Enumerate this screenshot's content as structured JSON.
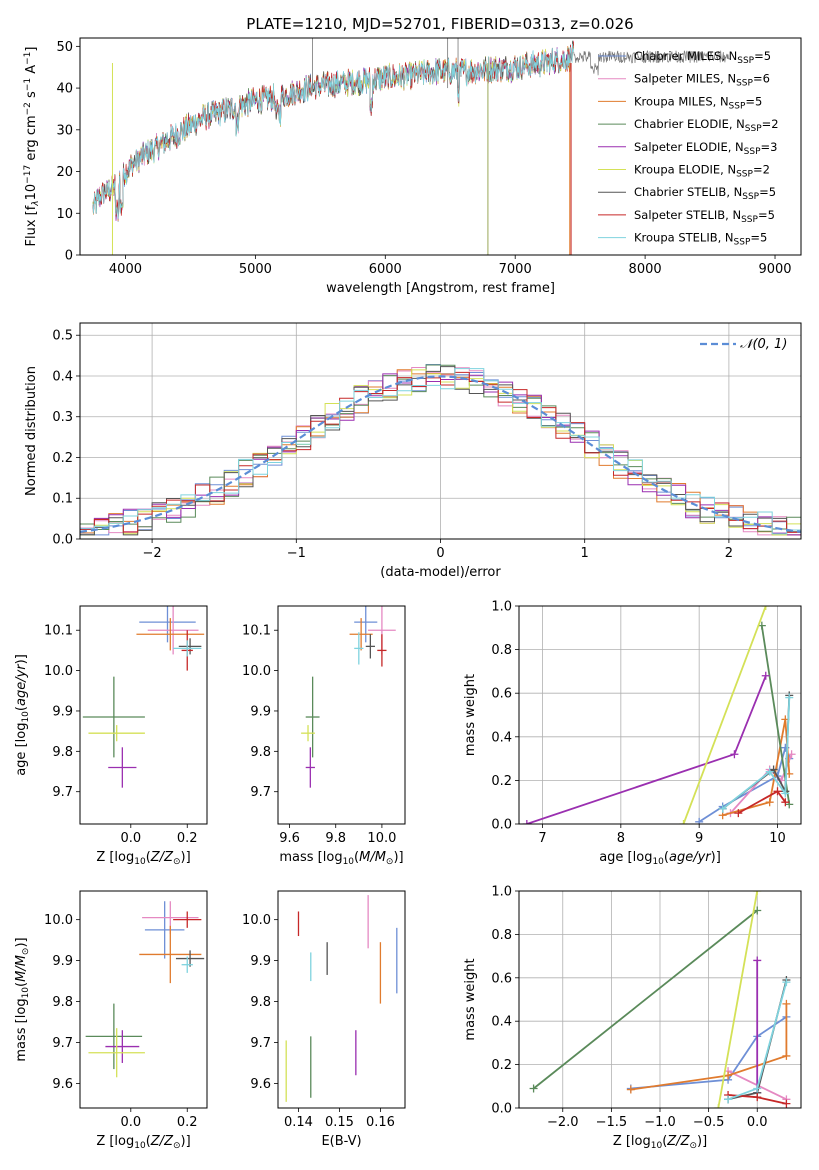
{
  "figure": {
    "title": "PLATE=1210, MJD=52701, FIBERID=0313, z=0.026"
  },
  "chart_data": [
    {
      "id": "spectrum",
      "type": "line",
      "xlabel": "wavelength [Angstrom, rest frame]",
      "ylabel": "Flux [f_λ10^{-17} erg cm^{-2} s^{-1} A^{-1}]",
      "ylabel_parts": [
        "Flux [f",
        "λ",
        "10",
        "−17",
        " erg cm",
        "−2",
        " s",
        "−1",
        " A",
        "−1",
        "]"
      ],
      "xlim": [
        3650,
        9200
      ],
      "ylim": [
        0,
        52
      ],
      "xticks": [
        4000,
        5000,
        6000,
        7000,
        8000,
        9000
      ],
      "yticks": [
        0,
        10,
        20,
        30,
        40,
        50
      ],
      "continuum": {
        "x": [
          3750,
          3800,
          3900,
          4000,
          4100,
          4200,
          4300,
          4400,
          4500,
          4600,
          4800,
          5000,
          5200,
          5400,
          5600,
          5800,
          6000,
          6200,
          6400,
          6600,
          6800,
          7000,
          7200,
          7400,
          7450
        ],
        "y": [
          11,
          14,
          16,
          20,
          23,
          25,
          27,
          29,
          31,
          33,
          35,
          37,
          38,
          40,
          41,
          41.5,
          42.5,
          43,
          44,
          44,
          44.5,
          45,
          46,
          47,
          48
        ]
      },
      "legend": [
        {
          "name": "Chabrier MILES, N_SSP=5",
          "base": "Chabrier MILES, N",
          "sub": "SSP",
          "tail": "=5",
          "color": "#6e8fd6"
        },
        {
          "name": "Salpeter MILES, N_SSP=6",
          "base": "Salpeter MILES, N",
          "sub": "SSP",
          "tail": "=6",
          "color": "#e589c2"
        },
        {
          "name": "Kroupa MILES, N_SSP=5",
          "base": "Kroupa MILES, N",
          "sub": "SSP",
          "tail": "=5",
          "color": "#e07b2e"
        },
        {
          "name": "Chabrier ELODIE, N_SSP=2",
          "base": "Chabrier ELODIE, N",
          "sub": "SSP",
          "tail": "=2",
          "color": "#5a8a5a"
        },
        {
          "name": "Salpeter ELODIE, N_SSP=3",
          "base": "Salpeter ELODIE, N",
          "sub": "SSP",
          "tail": "=3",
          "color": "#9a2fb0"
        },
        {
          "name": "Kroupa ELODIE, N_SSP=2",
          "base": "Kroupa ELODIE, N",
          "sub": "SSP",
          "tail": "=2",
          "color": "#d4e157"
        },
        {
          "name": "Chabrier STELIB, N_SSP=5",
          "base": "Chabrier STELIB, N",
          "sub": "SSP",
          "tail": "=5",
          "color": "#555555"
        },
        {
          "name": "Salpeter STELIB, N_SSP=5",
          "base": "Salpeter STELIB, N",
          "sub": "SSP",
          "tail": "=5",
          "color": "#c62828"
        },
        {
          "name": "Kroupa STELIB, N_SSP=5",
          "base": "Kroupa STELIB, N",
          "sub": "SSP",
          "tail": "=5",
          "color": "#7fd3de"
        }
      ]
    },
    {
      "id": "residuals",
      "type": "histogram",
      "xlabel": "(data-model)/error",
      "ylabel": "Normed distribution",
      "xlim": [
        -2.5,
        2.5
      ],
      "ylim": [
        0,
        0.53
      ],
      "xticks": [
        -2,
        -1,
        0,
        1,
        2
      ],
      "xtick_labels": [
        "−2",
        "−1",
        "0",
        "1",
        "2"
      ],
      "yticks": [
        0.0,
        0.1,
        0.2,
        0.3,
        0.4,
        0.5
      ],
      "ytick_labels": [
        "0.0",
        "0.1",
        "0.2",
        "0.3",
        "0.4",
        "0.5"
      ],
      "grid": true,
      "legend_label": "𝒩(0, 1)",
      "gaussian": {
        "mean": 0,
        "sigma": 1,
        "color": "#5b8dd6"
      },
      "bin_width": 0.1
    },
    {
      "id": "age_vs_Z",
      "type": "errorbar",
      "xlabel": "Z [log10(Z/Z⊙)]",
      "ylabel": "age  [log10(age/yr)]",
      "xlim": [
        -0.18,
        0.27
      ],
      "ylim": [
        9.62,
        10.16
      ],
      "xticks": [
        0.0,
        0.2
      ],
      "xtick_labels": [
        "0.0",
        "0.2"
      ],
      "yticks": [
        9.7,
        9.8,
        9.9,
        10.0,
        10.1
      ],
      "ytick_labels": [
        "9.7",
        "9.8",
        "9.9",
        "10.0",
        "10.1"
      ],
      "points": [
        {
          "x": 0.13,
          "y": 10.12,
          "xerr": 0.1,
          "yerr": 0.05,
          "color": "#6e8fd6"
        },
        {
          "x": 0.15,
          "y": 10.1,
          "xerr": 0.09,
          "yerr": 0.06,
          "color": "#e589c2"
        },
        {
          "x": 0.14,
          "y": 10.09,
          "xerr": 0.12,
          "yerr": 0.04,
          "color": "#e07b2e"
        },
        {
          "x": -0.06,
          "y": 9.885,
          "xerr": 0.11,
          "yerr": 0.1,
          "color": "#5a8a5a"
        },
        {
          "x": -0.03,
          "y": 9.76,
          "xerr": 0.05,
          "yerr": 0.05,
          "color": "#9a2fb0"
        },
        {
          "x": -0.05,
          "y": 9.845,
          "xerr": 0.1,
          "yerr": 0.02,
          "color": "#d4e157"
        },
        {
          "x": 0.21,
          "y": 10.06,
          "xerr": 0.04,
          "yerr": 0.02,
          "color": "#555555"
        },
        {
          "x": 0.2,
          "y": 10.05,
          "xerr": 0.02,
          "yerr": 0.05,
          "color": "#c62828"
        },
        {
          "x": 0.2,
          "y": 10.055,
          "xerr": 0.05,
          "yerr": 0.02,
          "color": "#7fd3de"
        }
      ]
    },
    {
      "id": "age_vs_mass",
      "type": "errorbar",
      "xlabel": "mass [log10(M/M⊙)]",
      "ylabel": "",
      "xlim": [
        9.55,
        10.1
      ],
      "ylim": [
        9.62,
        10.16
      ],
      "xticks": [
        9.6,
        9.8,
        10.0
      ],
      "xtick_labels": [
        "9.6",
        "9.8",
        "10.0"
      ],
      "yticks": [
        9.7,
        9.8,
        9.9,
        10.0,
        10.1
      ],
      "ytick_labels": [
        "9.7",
        "9.8",
        "9.9",
        "10.0",
        "10.1"
      ],
      "points": [
        {
          "x": 9.93,
          "y": 10.12,
          "xerr": 0.05,
          "yerr": 0.05,
          "color": "#6e8fd6"
        },
        {
          "x": 10.0,
          "y": 10.1,
          "xerr": 0.06,
          "yerr": 0.06,
          "color": "#e589c2"
        },
        {
          "x": 9.91,
          "y": 10.09,
          "xerr": 0.05,
          "yerr": 0.04,
          "color": "#e07b2e"
        },
        {
          "x": 9.7,
          "y": 9.885,
          "xerr": 0.03,
          "yerr": 0.1,
          "color": "#5a8a5a"
        },
        {
          "x": 9.69,
          "y": 9.76,
          "xerr": 0.02,
          "yerr": 0.05,
          "color": "#9a2fb0"
        },
        {
          "x": 9.68,
          "y": 9.845,
          "xerr": 0.03,
          "yerr": 0.02,
          "color": "#d4e157"
        },
        {
          "x": 9.95,
          "y": 10.06,
          "xerr": 0.02,
          "yerr": 0.03,
          "color": "#555555"
        },
        {
          "x": 10.0,
          "y": 10.05,
          "xerr": 0.02,
          "yerr": 0.04,
          "color": "#c62828"
        },
        {
          "x": 9.9,
          "y": 10.055,
          "xerr": 0.02,
          "yerr": 0.04,
          "color": "#7fd3de"
        }
      ]
    },
    {
      "id": "weight_vs_age",
      "type": "line",
      "xlabel": "age  [log10(age/yr)]",
      "ylabel": "mass weight",
      "xlim": [
        6.7,
        10.3
      ],
      "ylim": [
        0,
        1
      ],
      "xticks": [
        7,
        8,
        9,
        10
      ],
      "xtick_labels": [
        "7",
        "8",
        "9",
        "10"
      ],
      "yticks": [
        0.0,
        0.2,
        0.4,
        0.6,
        0.8,
        1.0
      ],
      "ytick_labels": [
        "0.0",
        "0.2",
        "0.4",
        "0.6",
        "0.8",
        "1.0"
      ],
      "grid": true,
      "series": [
        {
          "color": "#6e8fd6",
          "x": [
            9.0,
            9.3,
            10.0,
            10.1,
            10.15
          ],
          "y": [
            0.01,
            0.08,
            0.22,
            0.35,
            0.3
          ]
        },
        {
          "color": "#e589c2",
          "x": [
            9.4,
            9.9,
            10.05,
            10.18
          ],
          "y": [
            0.05,
            0.25,
            0.2,
            0.32
          ]
        },
        {
          "color": "#e07b2e",
          "x": [
            9.3,
            9.9,
            10.1,
            10.15
          ],
          "y": [
            0.04,
            0.1,
            0.48,
            0.23
          ]
        },
        {
          "color": "#5a8a5a",
          "x": [
            9.8,
            10.15
          ],
          "y": [
            0.91,
            0.09
          ]
        },
        {
          "color": "#9a2fb0",
          "x": [
            6.8,
            9.45,
            9.85
          ],
          "y": [
            0.0,
            0.32,
            0.68
          ]
        },
        {
          "color": "#d4e157",
          "x": [
            8.8,
            9.85
          ],
          "y": [
            0.0,
            1.0
          ]
        },
        {
          "color": "#555555",
          "x": [
            9.3,
            9.95,
            10.1,
            10.15
          ],
          "y": [
            0.07,
            0.25,
            0.15,
            0.59
          ]
        },
        {
          "color": "#c62828",
          "x": [
            9.5,
            10.0,
            10.1
          ],
          "y": [
            0.05,
            0.15,
            0.1
          ]
        },
        {
          "color": "#7fd3de",
          "x": [
            9.3,
            9.9,
            10.1,
            10.15
          ],
          "y": [
            0.07,
            0.24,
            0.14,
            0.58
          ]
        }
      ]
    },
    {
      "id": "mass_vs_Z",
      "type": "errorbar",
      "xlabel": "Z [log10(Z/Z⊙)]",
      "ylabel": "mass [log10(M/M⊙)]",
      "xlim": [
        -0.18,
        0.27
      ],
      "ylim": [
        9.54,
        10.07
      ],
      "xticks": [
        0.0,
        0.2
      ],
      "xtick_labels": [
        "0.0",
        "0.2"
      ],
      "yticks": [
        9.6,
        9.7,
        9.8,
        9.9,
        10.0
      ],
      "ytick_labels": [
        "9.6",
        "9.7",
        "9.8",
        "9.9",
        "10.0"
      ],
      "points": [
        {
          "x": 0.12,
          "y": 9.975,
          "xerr": 0.07,
          "yerr": 0.07,
          "color": "#6e8fd6"
        },
        {
          "x": 0.14,
          "y": 10.005,
          "xerr": 0.1,
          "yerr": 0.04,
          "color": "#e589c2"
        },
        {
          "x": 0.14,
          "y": 9.915,
          "xerr": 0.11,
          "yerr": 0.07,
          "color": "#e07b2e"
        },
        {
          "x": -0.06,
          "y": 9.715,
          "xerr": 0.1,
          "yerr": 0.08,
          "color": "#5a8a5a"
        },
        {
          "x": -0.03,
          "y": 9.69,
          "xerr": 0.06,
          "yerr": 0.04,
          "color": "#9a2fb0"
        },
        {
          "x": -0.05,
          "y": 9.675,
          "xerr": 0.1,
          "yerr": 0.06,
          "color": "#d4e157"
        },
        {
          "x": 0.21,
          "y": 9.905,
          "xerr": 0.05,
          "yerr": 0.02,
          "color": "#555555"
        },
        {
          "x": 0.2,
          "y": 10.0,
          "xerr": 0.05,
          "yerr": 0.02,
          "color": "#c62828"
        },
        {
          "x": 0.2,
          "y": 9.89,
          "xerr": 0.02,
          "yerr": 0.02,
          "color": "#7fd3de"
        }
      ]
    },
    {
      "id": "mass_vs_ebv",
      "type": "errorbar",
      "xlabel": "E(B-V)",
      "ylabel": "",
      "xlim": [
        0.135,
        0.166
      ],
      "ylim": [
        9.54,
        10.07
      ],
      "xticks": [
        0.14,
        0.15,
        0.16
      ],
      "xtick_labels": [
        "0.14",
        "0.15",
        "0.16"
      ],
      "yticks": [
        9.6,
        9.7,
        9.8,
        9.9,
        10.0
      ],
      "ytick_labels": [
        "9.6",
        "9.7",
        "9.8",
        "9.9",
        "10.0"
      ],
      "points": [
        {
          "x": 0.164,
          "y": 9.9,
          "xerr": 0,
          "yerr": 0.08,
          "color": "#6e8fd6"
        },
        {
          "x": 0.157,
          "y": 9.995,
          "xerr": 0,
          "yerr": 0.065,
          "color": "#e589c2"
        },
        {
          "x": 0.16,
          "y": 9.87,
          "xerr": 0,
          "yerr": 0.075,
          "color": "#e07b2e"
        },
        {
          "x": 0.143,
          "y": 9.64,
          "xerr": 0,
          "yerr": 0.075,
          "color": "#5a8a5a"
        },
        {
          "x": 0.154,
          "y": 9.675,
          "xerr": 0,
          "yerr": 0.055,
          "color": "#9a2fb0"
        },
        {
          "x": 0.137,
          "y": 9.63,
          "xerr": 0,
          "yerr": 0.075,
          "color": "#d4e157"
        },
        {
          "x": 0.147,
          "y": 9.905,
          "xerr": 0,
          "yerr": 0.04,
          "color": "#555555"
        },
        {
          "x": 0.14,
          "y": 9.99,
          "xerr": 0,
          "yerr": 0.03,
          "color": "#c62828"
        },
        {
          "x": 0.143,
          "y": 9.885,
          "xerr": 0,
          "yerr": 0.035,
          "color": "#7fd3de"
        }
      ]
    },
    {
      "id": "weight_vs_Z",
      "type": "line",
      "xlabel": "Z [log10(Z/Z⊙)]",
      "ylabel": "mass weight",
      "xlim": [
        -2.45,
        0.45
      ],
      "ylim": [
        0,
        1
      ],
      "xticks": [
        -2.0,
        -1.5,
        -1.0,
        -0.5,
        0.0
      ],
      "xtick_labels": [
        "−2.0",
        "−1.5",
        "−1.0",
        "−0.5",
        "0.0"
      ],
      "yticks": [
        0.0,
        0.2,
        0.4,
        0.6,
        0.8,
        1.0
      ],
      "ytick_labels": [
        "0.0",
        "0.2",
        "0.4",
        "0.6",
        "0.8",
        "1.0"
      ],
      "grid": true,
      "series": [
        {
          "color": "#6e8fd6",
          "x": [
            -1.3,
            -0.3,
            0.0,
            0.3
          ],
          "y": [
            0.09,
            0.13,
            0.33,
            0.42
          ]
        },
        {
          "color": "#e589c2",
          "x": [
            -0.3,
            0.3
          ],
          "y": [
            0.17,
            0.04
          ]
        },
        {
          "color": "#e07b2e",
          "x": [
            -1.3,
            -0.3,
            0.3,
            0.3
          ],
          "y": [
            0.085,
            0.15,
            0.24,
            0.48
          ]
        },
        {
          "color": "#5a8a5a",
          "x": [
            -2.3,
            0.0
          ],
          "y": [
            0.09,
            0.91
          ]
        },
        {
          "color": "#9a2fb0",
          "x": [
            0.0,
            0.0
          ],
          "y": [
            0.68,
            0.07
          ]
        },
        {
          "color": "#d4e157",
          "x": [
            -0.4,
            0.0
          ],
          "y": [
            0.0,
            1.0
          ]
        },
        {
          "color": "#555555",
          "x": [
            -0.3,
            0.0,
            0.3
          ],
          "y": [
            0.04,
            0.07,
            0.59
          ]
        },
        {
          "color": "#c62828",
          "x": [
            -0.3,
            0.0,
            0.3
          ],
          "y": [
            0.06,
            0.05,
            0.02
          ]
        },
        {
          "color": "#7fd3de",
          "x": [
            -0.3,
            0.0,
            0.3
          ],
          "y": [
            0.04,
            0.09,
            0.58
          ]
        }
      ]
    }
  ]
}
